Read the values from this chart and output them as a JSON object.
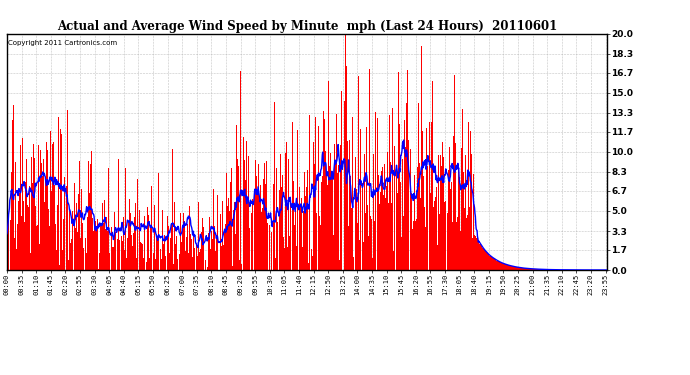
{
  "title": "Actual and Average Wind Speed by Minute  mph (Last 24 Hours)  20110601",
  "copyright": "Copyright 2011 Cartronics.com",
  "y_ticks": [
    0.0,
    1.7,
    3.3,
    5.0,
    6.7,
    8.3,
    10.0,
    11.7,
    13.3,
    15.0,
    16.7,
    18.3,
    20.0
  ],
  "ylim": [
    0,
    20.0
  ],
  "bar_color": "#FF0000",
  "avg_color": "#0000FF",
  "background_color": "#FFFFFF",
  "grid_color": "#AAAAAA",
  "seed": 42,
  "tick_interval_minutes": 35,
  "avg_window": 20
}
